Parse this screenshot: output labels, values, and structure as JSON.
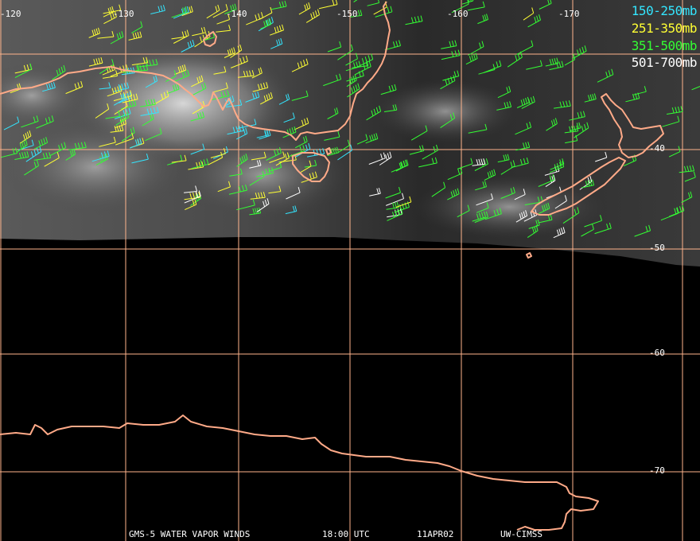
{
  "legend": [
    {
      "label": "150-250mb",
      "color": "#33e6ff"
    },
    {
      "label": "251-350mb",
      "color": "#ffff33"
    },
    {
      "label": "351-500mb",
      "color": "#33ff33"
    },
    {
      "label": "501-700mb",
      "color": "#ffffff"
    }
  ],
  "longitude_labels": [
    "-120",
    "-130",
    "-140",
    "-150",
    "-160",
    "-170"
  ],
  "latitude_labels": [
    "-40",
    "-50",
    "-60",
    "-70"
  ],
  "footer": {
    "product": "GMS-5 WATER VAPOR WINDS",
    "time": "18:00 UTC",
    "date": "11APR02",
    "source": "UW-CIMSS"
  },
  "colors": {
    "background": "#000000",
    "grid": "#ffb48c",
    "coastline": "#ffaa88"
  },
  "layers": [
    "water-vapor-imagery",
    "wind-barbs",
    "coastlines",
    "lat-lon-grid"
  ]
}
